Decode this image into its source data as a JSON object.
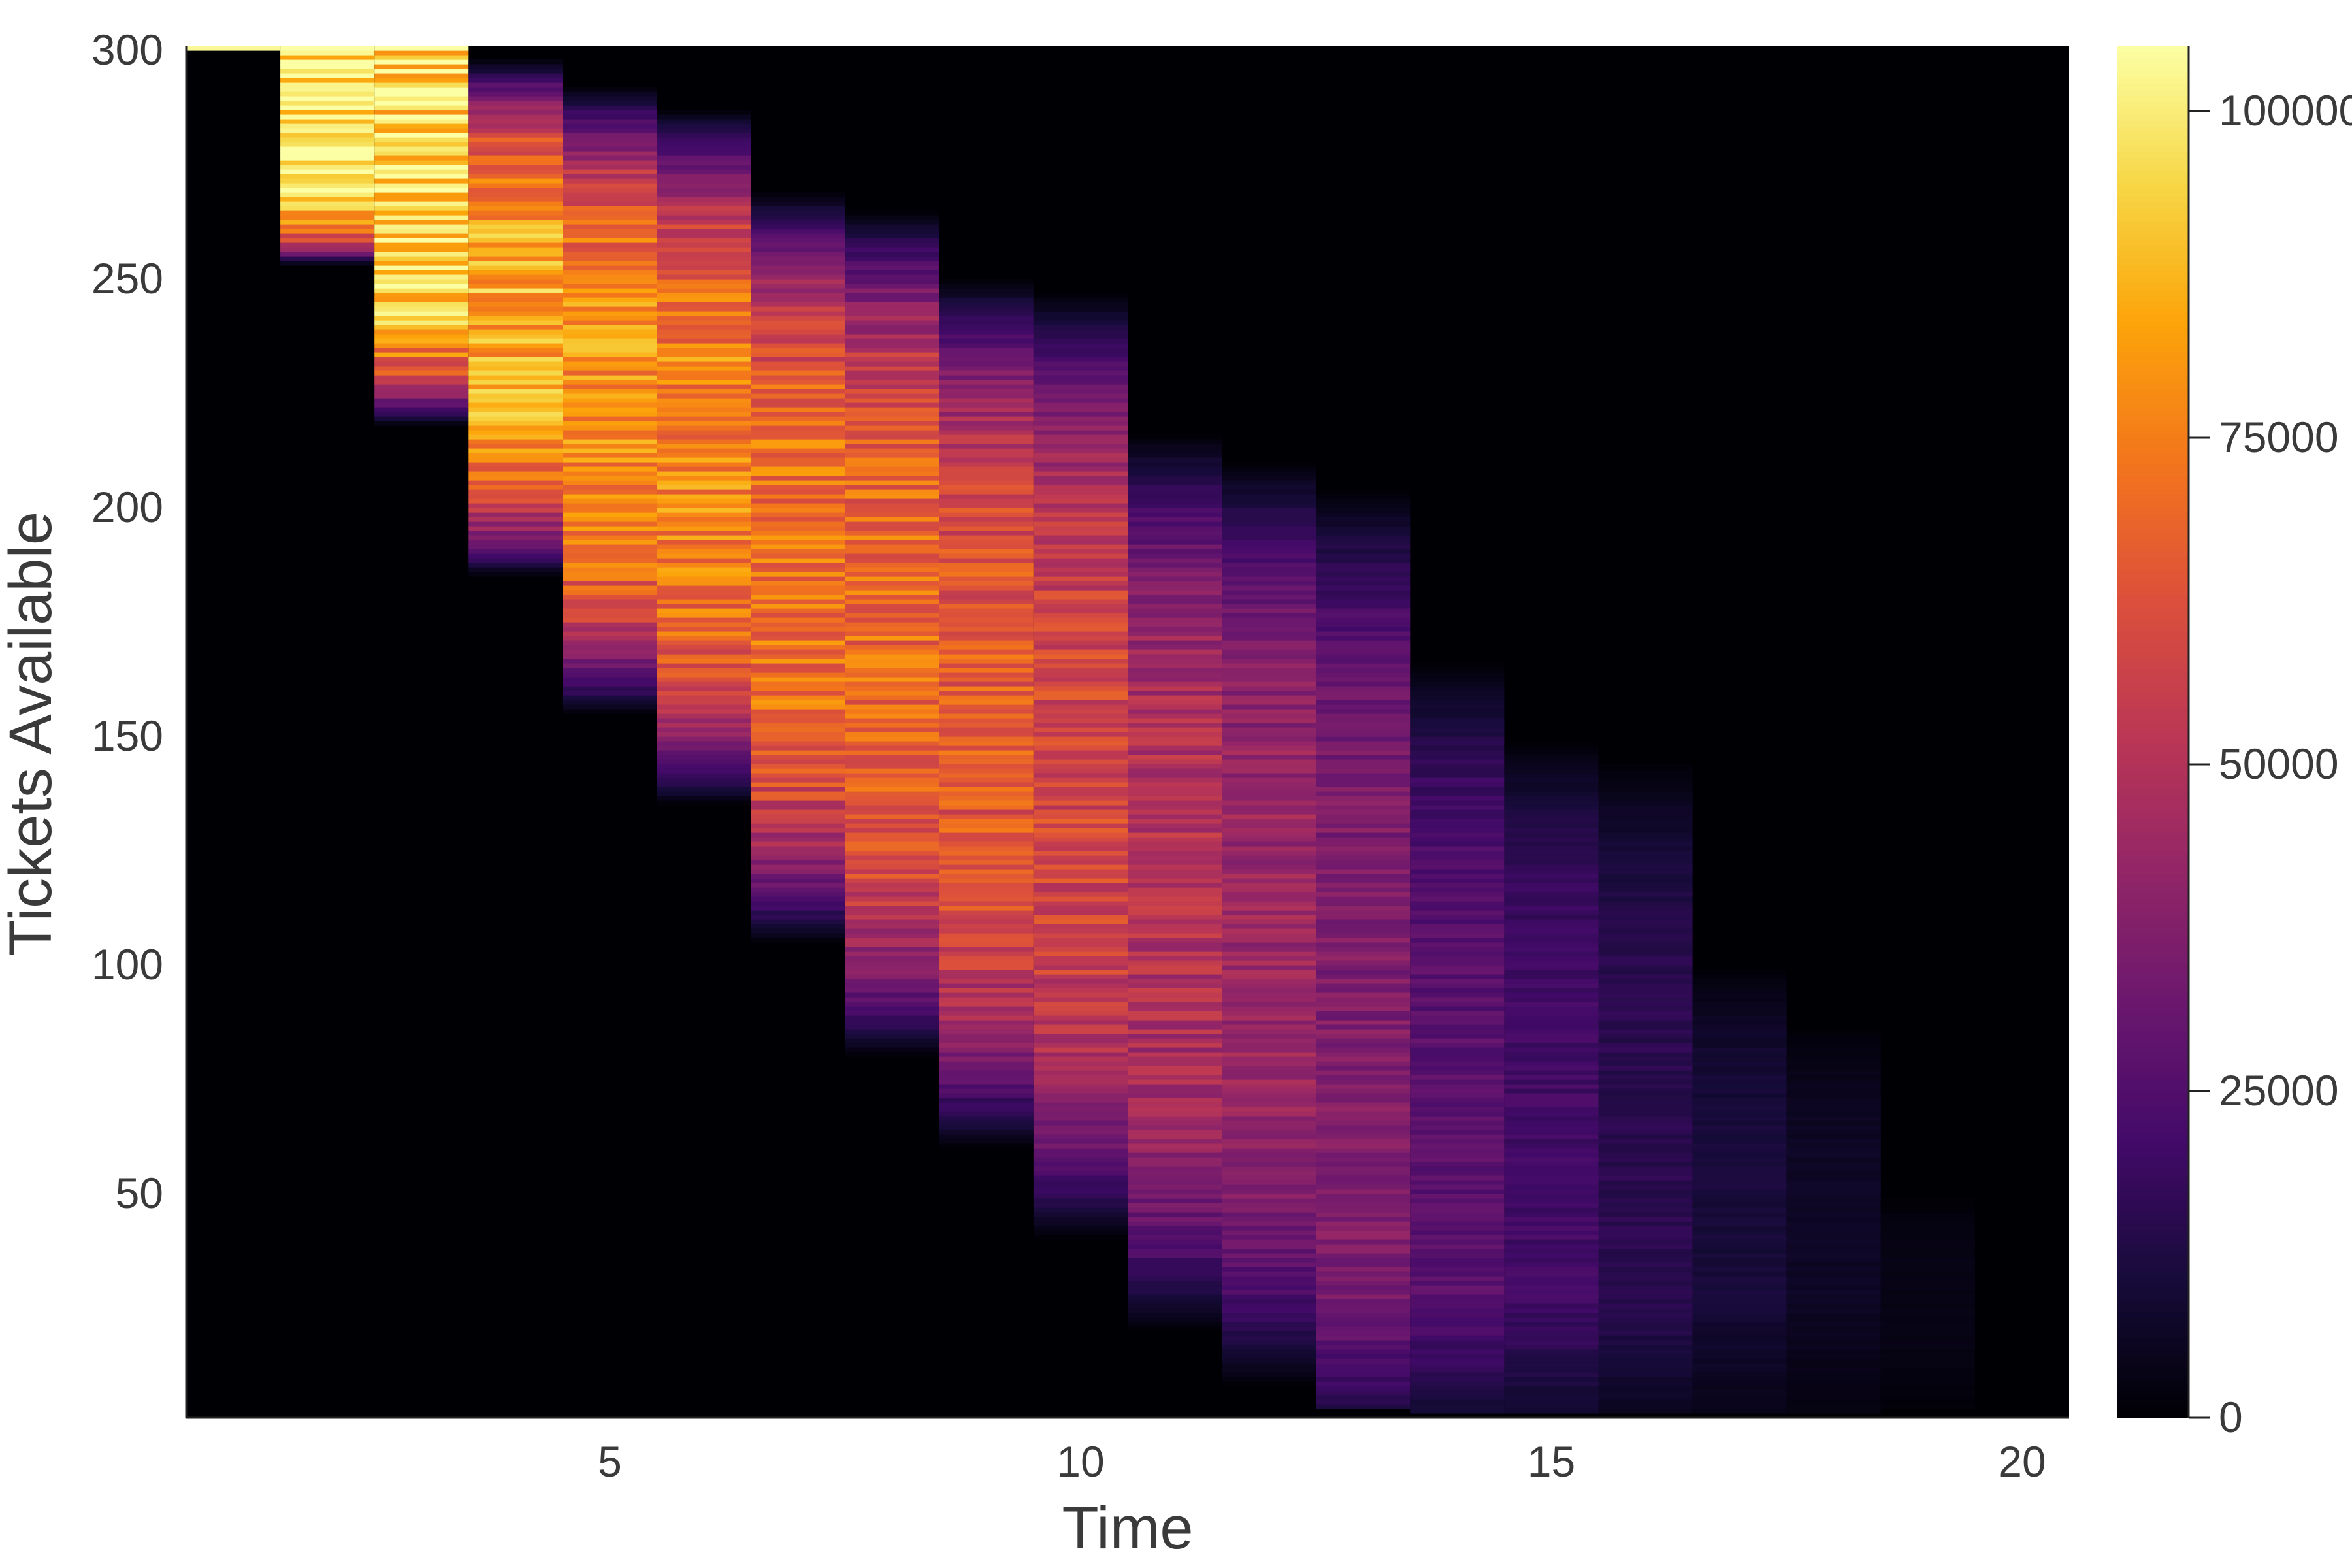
{
  "chart_data": {
    "type": "heatmap",
    "xlabel": "Time",
    "ylabel": "Tickets Available",
    "xlim": [
      0.5,
      20.5
    ],
    "ylim": [
      1,
      301
    ],
    "x_ticks": [
      5,
      10,
      15,
      20
    ],
    "y_ticks": [
      50,
      100,
      150,
      200,
      250,
      300
    ],
    "colorbar": {
      "colormap": "inferno",
      "range": [
        0,
        105000
      ],
      "ticks": [
        0,
        25000,
        50000,
        75000,
        100000
      ],
      "tick_labels": [
        "0",
        "25000",
        "50000",
        "75000",
        "100000"
      ]
    },
    "time_steps": [
      1,
      2,
      3,
      4,
      5,
      6,
      7,
      8,
      9,
      10,
      11,
      12,
      13,
      14,
      15,
      16,
      17,
      18,
      19,
      20
    ],
    "tickets_per_column": [
      {
        "t": 1,
        "low": 300,
        "high": 301,
        "peak_value": 100000
      },
      {
        "t": 2,
        "low": 253,
        "high": 301,
        "peak_value": 103000
      },
      {
        "t": 3,
        "low": 218,
        "high": 301,
        "peak_value": 98000
      },
      {
        "t": 4,
        "low": 185,
        "high": 298,
        "peak_value": 90000
      },
      {
        "t": 5,
        "low": 155,
        "high": 292,
        "peak_value": 83000
      },
      {
        "t": 6,
        "low": 135,
        "high": 287,
        "peak_value": 80000
      },
      {
        "t": 7,
        "low": 105,
        "high": 269,
        "peak_value": 76000
      },
      {
        "t": 8,
        "low": 80,
        "high": 265,
        "peak_value": 73000
      },
      {
        "t": 9,
        "low": 60,
        "high": 250,
        "peak_value": 68000
      },
      {
        "t": 10,
        "low": 40,
        "high": 247,
        "peak_value": 62000
      },
      {
        "t": 11,
        "low": 20,
        "high": 216,
        "peak_value": 52000
      },
      {
        "t": 12,
        "low": 8,
        "high": 210,
        "peak_value": 46000
      },
      {
        "t": 13,
        "low": 3,
        "high": 204,
        "peak_value": 38000
      },
      {
        "t": 14,
        "low": 2,
        "high": 166,
        "peak_value": 28000
      },
      {
        "t": 15,
        "low": 2,
        "high": 149,
        "peak_value": 22000
      },
      {
        "t": 16,
        "low": 2,
        "high": 145,
        "peak_value": 16000
      },
      {
        "t": 17,
        "low": 2,
        "high": 100,
        "peak_value": 11000
      },
      {
        "t": 18,
        "low": 2,
        "high": 87,
        "peak_value": 7000
      },
      {
        "t": 19,
        "low": 3,
        "high": 50,
        "peak_value": 3500
      },
      {
        "t": 20,
        "low": 0,
        "high": 0,
        "peak_value": 0
      }
    ]
  }
}
